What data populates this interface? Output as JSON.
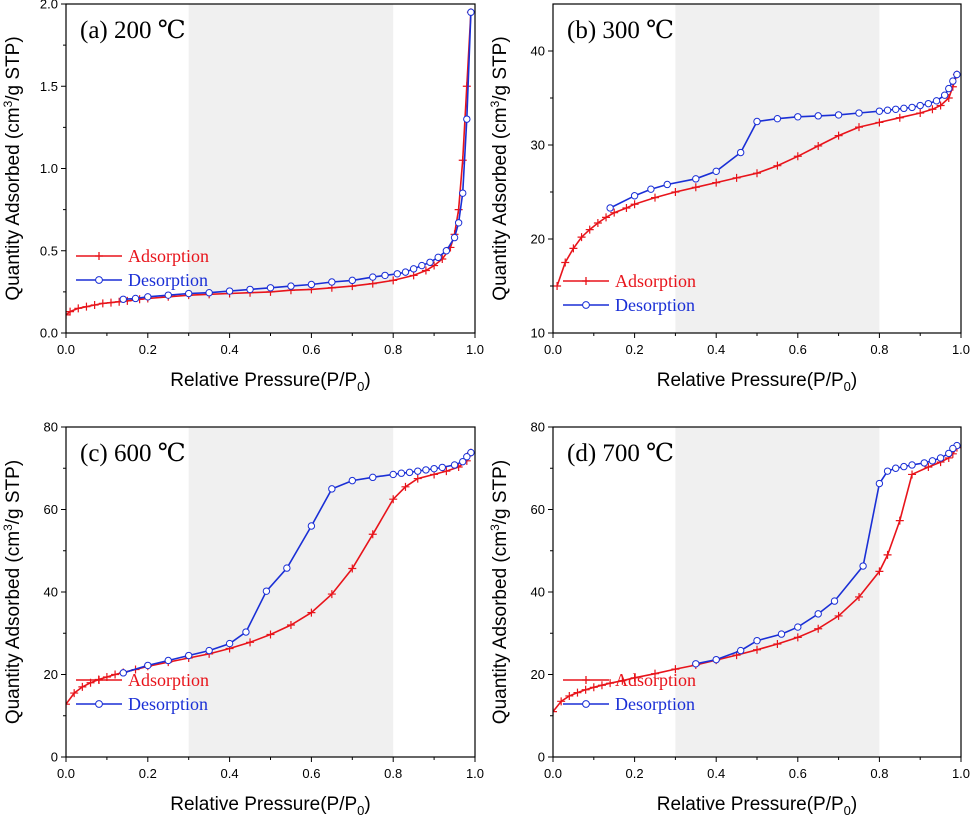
{
  "figure": {
    "panel_x_label_main": "Relative Pressure(P/P",
    "panel_x_label_sub": "0",
    "panel_x_label_end": ")",
    "panel_y_label_pre": "Quantity Adsorbed (cm",
    "panel_y_label_sup": "3",
    "panel_y_label_post": "/g STP)"
  },
  "colors": {
    "adsorption": "#e8141b",
    "desorption": "#1a2fd6",
    "shade": "#f0f0f0"
  },
  "chart_data": [
    {
      "type": "line",
      "title": "(a) 200 ℃",
      "xlabel": "Relative Pressure(P/P0)",
      "ylabel": "Quantity Adsorbed (cm3/g STP)",
      "xlim": [
        0.0,
        1.0
      ],
      "ylim": [
        0.0,
        2.0
      ],
      "xticks": [
        "0.0",
        "0.2",
        "0.4",
        "0.6",
        "0.8",
        "1.0"
      ],
      "yticks": [
        "0.0",
        "0.5",
        "1.0",
        "1.5",
        "2.0"
      ],
      "ytick_values": [
        0.0,
        0.5,
        1.0,
        1.5,
        2.0
      ],
      "shaded_range": [
        0.3,
        0.8
      ],
      "legend": [
        "Adsorption",
        "Desorption"
      ],
      "series": [
        {
          "name": "Adsorption",
          "marker": "plus",
          "x": [
            0.0,
            0.01,
            0.03,
            0.05,
            0.07,
            0.09,
            0.11,
            0.13,
            0.15,
            0.18,
            0.2,
            0.25,
            0.3,
            0.35,
            0.4,
            0.45,
            0.5,
            0.55,
            0.6,
            0.65,
            0.7,
            0.75,
            0.8,
            0.85,
            0.88,
            0.9,
            0.92,
            0.94,
            0.95,
            0.96,
            0.97,
            0.98,
            0.99
          ],
          "y": [
            0.11,
            0.13,
            0.15,
            0.16,
            0.17,
            0.18,
            0.185,
            0.19,
            0.195,
            0.205,
            0.21,
            0.22,
            0.23,
            0.235,
            0.24,
            0.245,
            0.25,
            0.26,
            0.265,
            0.275,
            0.285,
            0.3,
            0.32,
            0.35,
            0.38,
            0.41,
            0.45,
            0.52,
            0.6,
            0.75,
            1.05,
            1.5,
            1.95
          ]
        },
        {
          "name": "Desorption",
          "marker": "circle",
          "x": [
            0.99,
            0.98,
            0.97,
            0.96,
            0.95,
            0.93,
            0.91,
            0.89,
            0.87,
            0.85,
            0.83,
            0.81,
            0.78,
            0.75,
            0.7,
            0.65,
            0.6,
            0.55,
            0.5,
            0.45,
            0.4,
            0.35,
            0.3,
            0.25,
            0.2,
            0.17,
            0.14
          ],
          "y": [
            1.95,
            1.3,
            0.85,
            0.67,
            0.58,
            0.5,
            0.46,
            0.43,
            0.41,
            0.39,
            0.37,
            0.36,
            0.35,
            0.34,
            0.32,
            0.31,
            0.295,
            0.285,
            0.275,
            0.265,
            0.255,
            0.245,
            0.24,
            0.23,
            0.22,
            0.21,
            0.205
          ]
        }
      ]
    },
    {
      "type": "line",
      "title": "(b) 300 ℃",
      "xlabel": "Relative Pressure(P/P0)",
      "ylabel": "Quantity Adsorbed (cm3/g STP)",
      "xlim": [
        0.0,
        1.0
      ],
      "ylim": [
        10,
        45
      ],
      "xticks": [
        "0.0",
        "0.2",
        "0.4",
        "0.6",
        "0.8",
        "1.0"
      ],
      "yticks": [
        "10",
        "20",
        "30",
        "40"
      ],
      "ytick_values": [
        10,
        20,
        30,
        40
      ],
      "shaded_range": [
        0.3,
        0.8
      ],
      "legend": [
        "Adsorption",
        "Desorption"
      ],
      "series": [
        {
          "name": "Adsorption",
          "marker": "plus",
          "x": [
            0.01,
            0.03,
            0.05,
            0.07,
            0.09,
            0.11,
            0.13,
            0.15,
            0.18,
            0.2,
            0.25,
            0.3,
            0.35,
            0.4,
            0.45,
            0.5,
            0.55,
            0.6,
            0.65,
            0.7,
            0.75,
            0.8,
            0.85,
            0.9,
            0.93,
            0.95,
            0.97,
            0.98,
            0.99
          ],
          "y": [
            15.0,
            17.5,
            19.0,
            20.2,
            21.0,
            21.7,
            22.3,
            22.8,
            23.3,
            23.7,
            24.4,
            25.0,
            25.5,
            26.0,
            26.5,
            27.0,
            27.8,
            28.8,
            29.9,
            31.0,
            31.9,
            32.4,
            32.9,
            33.4,
            33.8,
            34.2,
            35.0,
            36.2,
            37.5
          ]
        },
        {
          "name": "Desorption",
          "marker": "circle",
          "x": [
            0.99,
            0.98,
            0.97,
            0.96,
            0.94,
            0.92,
            0.9,
            0.88,
            0.86,
            0.84,
            0.82,
            0.8,
            0.75,
            0.7,
            0.65,
            0.6,
            0.55,
            0.5,
            0.46,
            0.4,
            0.35,
            0.28,
            0.24,
            0.2,
            0.14
          ],
          "y": [
            37.5,
            36.8,
            36.0,
            35.3,
            34.7,
            34.4,
            34.2,
            34.0,
            33.9,
            33.8,
            33.7,
            33.6,
            33.4,
            33.2,
            33.1,
            33.0,
            32.8,
            32.5,
            29.2,
            27.2,
            26.4,
            25.8,
            25.3,
            24.6,
            23.3
          ]
        }
      ]
    },
    {
      "type": "line",
      "title": "(c) 600 ℃",
      "xlabel": "Relative Pressure(P/P0)",
      "ylabel": "Quantity Adsorbed (cm3/g STP)",
      "xlim": [
        0.0,
        1.0
      ],
      "ylim": [
        0,
        80
      ],
      "xticks": [
        "0.0",
        "0.2",
        "0.4",
        "0.6",
        "0.8",
        "1.0"
      ],
      "yticks": [
        "0",
        "20",
        "40",
        "60",
        "80"
      ],
      "ytick_values": [
        0,
        20,
        40,
        60,
        80
      ],
      "shaded_range": [
        0.3,
        0.8
      ],
      "legend": [
        "Adsorption",
        "Desorption"
      ],
      "series": [
        {
          "name": "Adsorption",
          "marker": "plus",
          "x": [
            0.0,
            0.02,
            0.04,
            0.06,
            0.08,
            0.1,
            0.12,
            0.14,
            0.17,
            0.2,
            0.25,
            0.3,
            0.35,
            0.4,
            0.45,
            0.5,
            0.55,
            0.6,
            0.65,
            0.7,
            0.75,
            0.8,
            0.83,
            0.86,
            0.9,
            0.93,
            0.96,
            0.98,
            0.99
          ],
          "y": [
            12.8,
            15.5,
            17.0,
            18.0,
            18.8,
            19.4,
            20.0,
            20.5,
            21.2,
            22.0,
            23.0,
            24.0,
            25.0,
            26.3,
            27.8,
            29.7,
            32.0,
            35.0,
            39.5,
            45.7,
            54.0,
            62.5,
            65.5,
            67.5,
            68.5,
            69.3,
            70.3,
            71.8,
            73.8
          ]
        },
        {
          "name": "Desorption",
          "marker": "circle",
          "x": [
            0.99,
            0.98,
            0.97,
            0.95,
            0.92,
            0.9,
            0.88,
            0.86,
            0.84,
            0.82,
            0.8,
            0.75,
            0.7,
            0.65,
            0.6,
            0.54,
            0.49,
            0.44,
            0.4,
            0.35,
            0.3,
            0.25,
            0.2,
            0.14
          ],
          "y": [
            73.8,
            72.8,
            71.6,
            70.8,
            70.2,
            69.9,
            69.6,
            69.3,
            69.0,
            68.8,
            68.5,
            67.8,
            67.0,
            65.0,
            56.0,
            45.8,
            40.2,
            30.3,
            27.5,
            25.8,
            24.6,
            23.4,
            22.2,
            20.4
          ]
        }
      ]
    },
    {
      "type": "line",
      "title": "(d) 700 ℃",
      "xlabel": "Relative Pressure(P/P0)",
      "ylabel": "Quantity Adsorbed (cm3/g STP)",
      "xlim": [
        0.0,
        1.0
      ],
      "ylim": [
        0,
        80
      ],
      "xticks": [
        "0.0",
        "0.2",
        "0.4",
        "0.6",
        "0.8",
        "1.0"
      ],
      "yticks": [
        "0",
        "20",
        "40",
        "60",
        "80"
      ],
      "ytick_values": [
        0,
        20,
        40,
        60,
        80
      ],
      "shaded_range": [
        0.3,
        0.8
      ],
      "legend": [
        "Adsorption",
        "Desorption"
      ],
      "series": [
        {
          "name": "Adsorption",
          "marker": "plus",
          "x": [
            0.0,
            0.02,
            0.04,
            0.06,
            0.08,
            0.1,
            0.12,
            0.14,
            0.17,
            0.2,
            0.25,
            0.3,
            0.35,
            0.4,
            0.45,
            0.5,
            0.55,
            0.6,
            0.65,
            0.7,
            0.75,
            0.8,
            0.82,
            0.85,
            0.88,
            0.92,
            0.95,
            0.97,
            0.98,
            0.99
          ],
          "y": [
            11.0,
            13.5,
            14.8,
            15.6,
            16.3,
            16.9,
            17.4,
            17.9,
            18.5,
            19.2,
            20.2,
            21.3,
            22.3,
            23.5,
            24.7,
            26.0,
            27.4,
            29.0,
            31.1,
            34.2,
            38.8,
            45.0,
            49.0,
            57.3,
            68.5,
            70.3,
            71.5,
            72.5,
            73.5,
            75.0
          ]
        },
        {
          "name": "Desorption",
          "marker": "circle",
          "x": [
            0.99,
            0.98,
            0.97,
            0.95,
            0.93,
            0.91,
            0.88,
            0.86,
            0.84,
            0.82,
            0.8,
            0.76,
            0.69,
            0.65,
            0.6,
            0.56,
            0.5,
            0.46,
            0.4,
            0.35
          ],
          "y": [
            75.5,
            74.8,
            73.6,
            72.5,
            71.8,
            71.3,
            70.8,
            70.4,
            70.0,
            69.3,
            66.3,
            46.3,
            37.8,
            34.7,
            31.5,
            29.8,
            28.2,
            25.8,
            23.6,
            22.6
          ]
        }
      ]
    }
  ]
}
